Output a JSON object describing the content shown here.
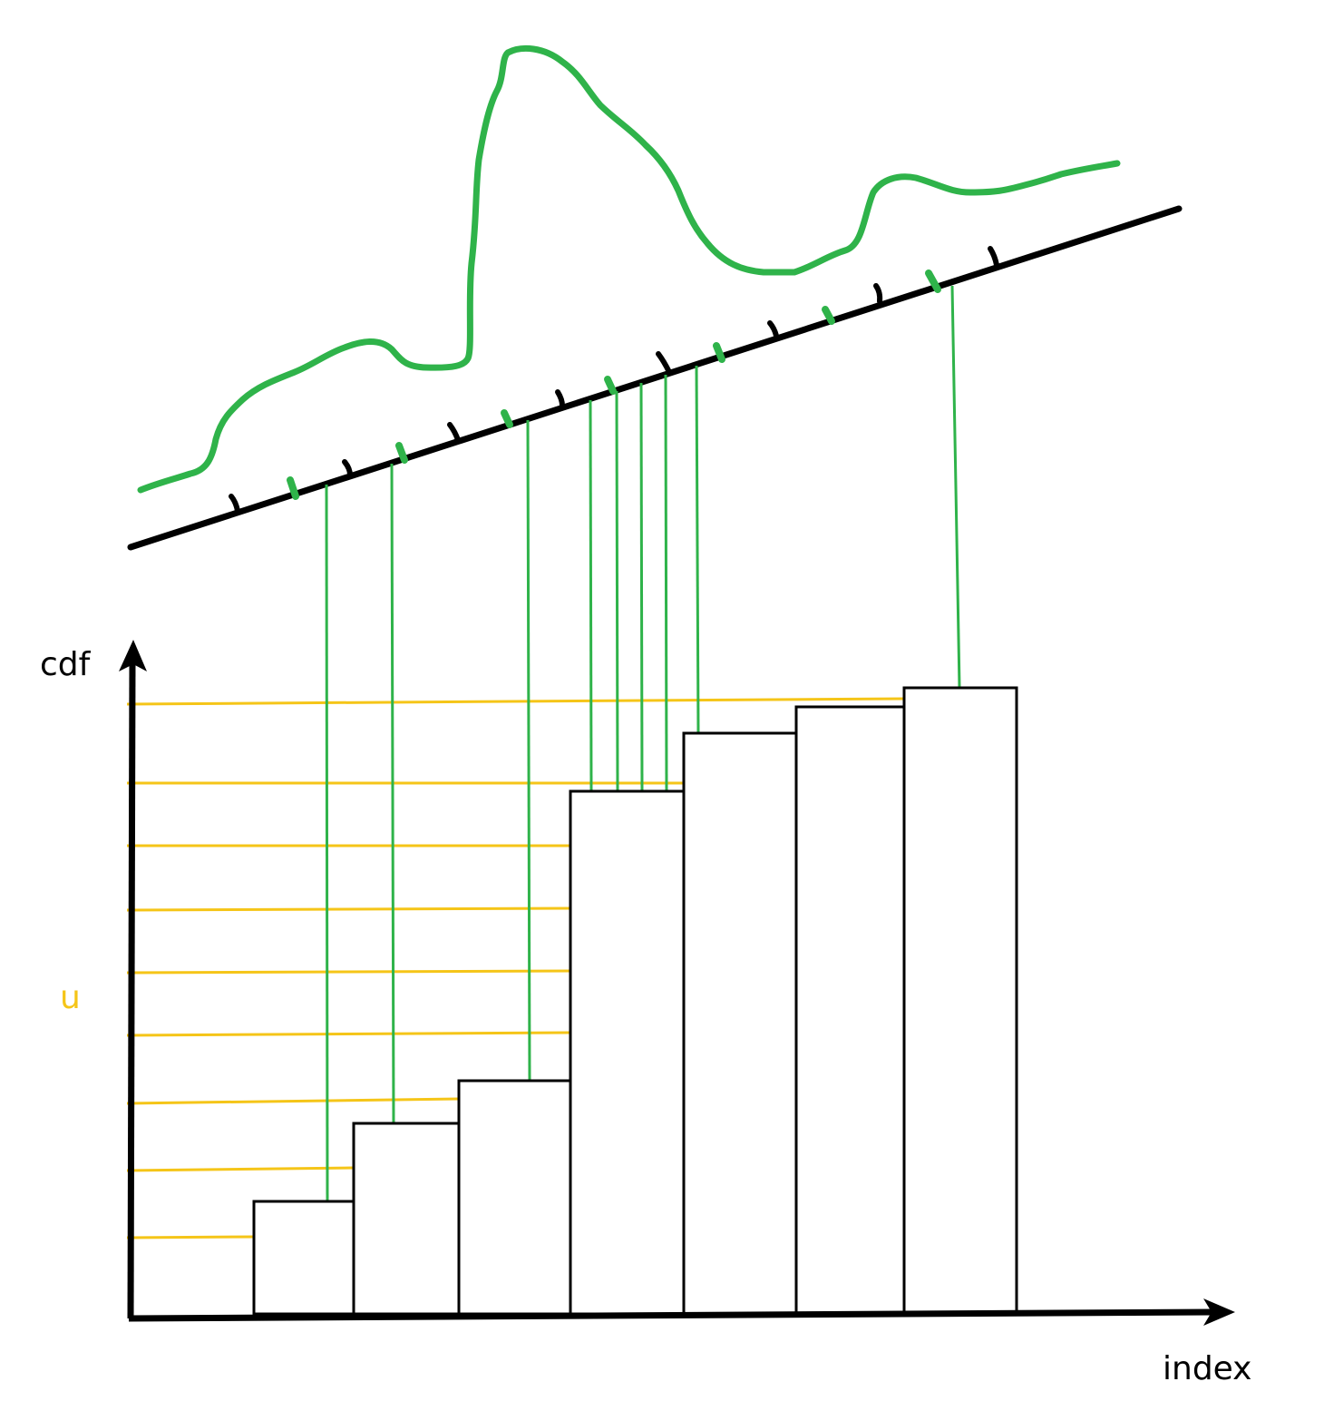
{
  "labels": {
    "y_axis": "cdf",
    "x_axis": "index",
    "u_marker": "u"
  },
  "colors": {
    "curve": "#2fb34a",
    "uniform_lines": "#f5c518",
    "ink": "#000000",
    "u_label": "#f5c518"
  },
  "chart_data": {
    "type": "bar",
    "title": "",
    "xlabel": "index",
    "ylabel": "cdf",
    "annotation": "u",
    "bar_count": 7,
    "uniform_sample_lines": 9,
    "resampled_indices": [
      1,
      2,
      3,
      4,
      4,
      4,
      4,
      5,
      7
    ]
  }
}
